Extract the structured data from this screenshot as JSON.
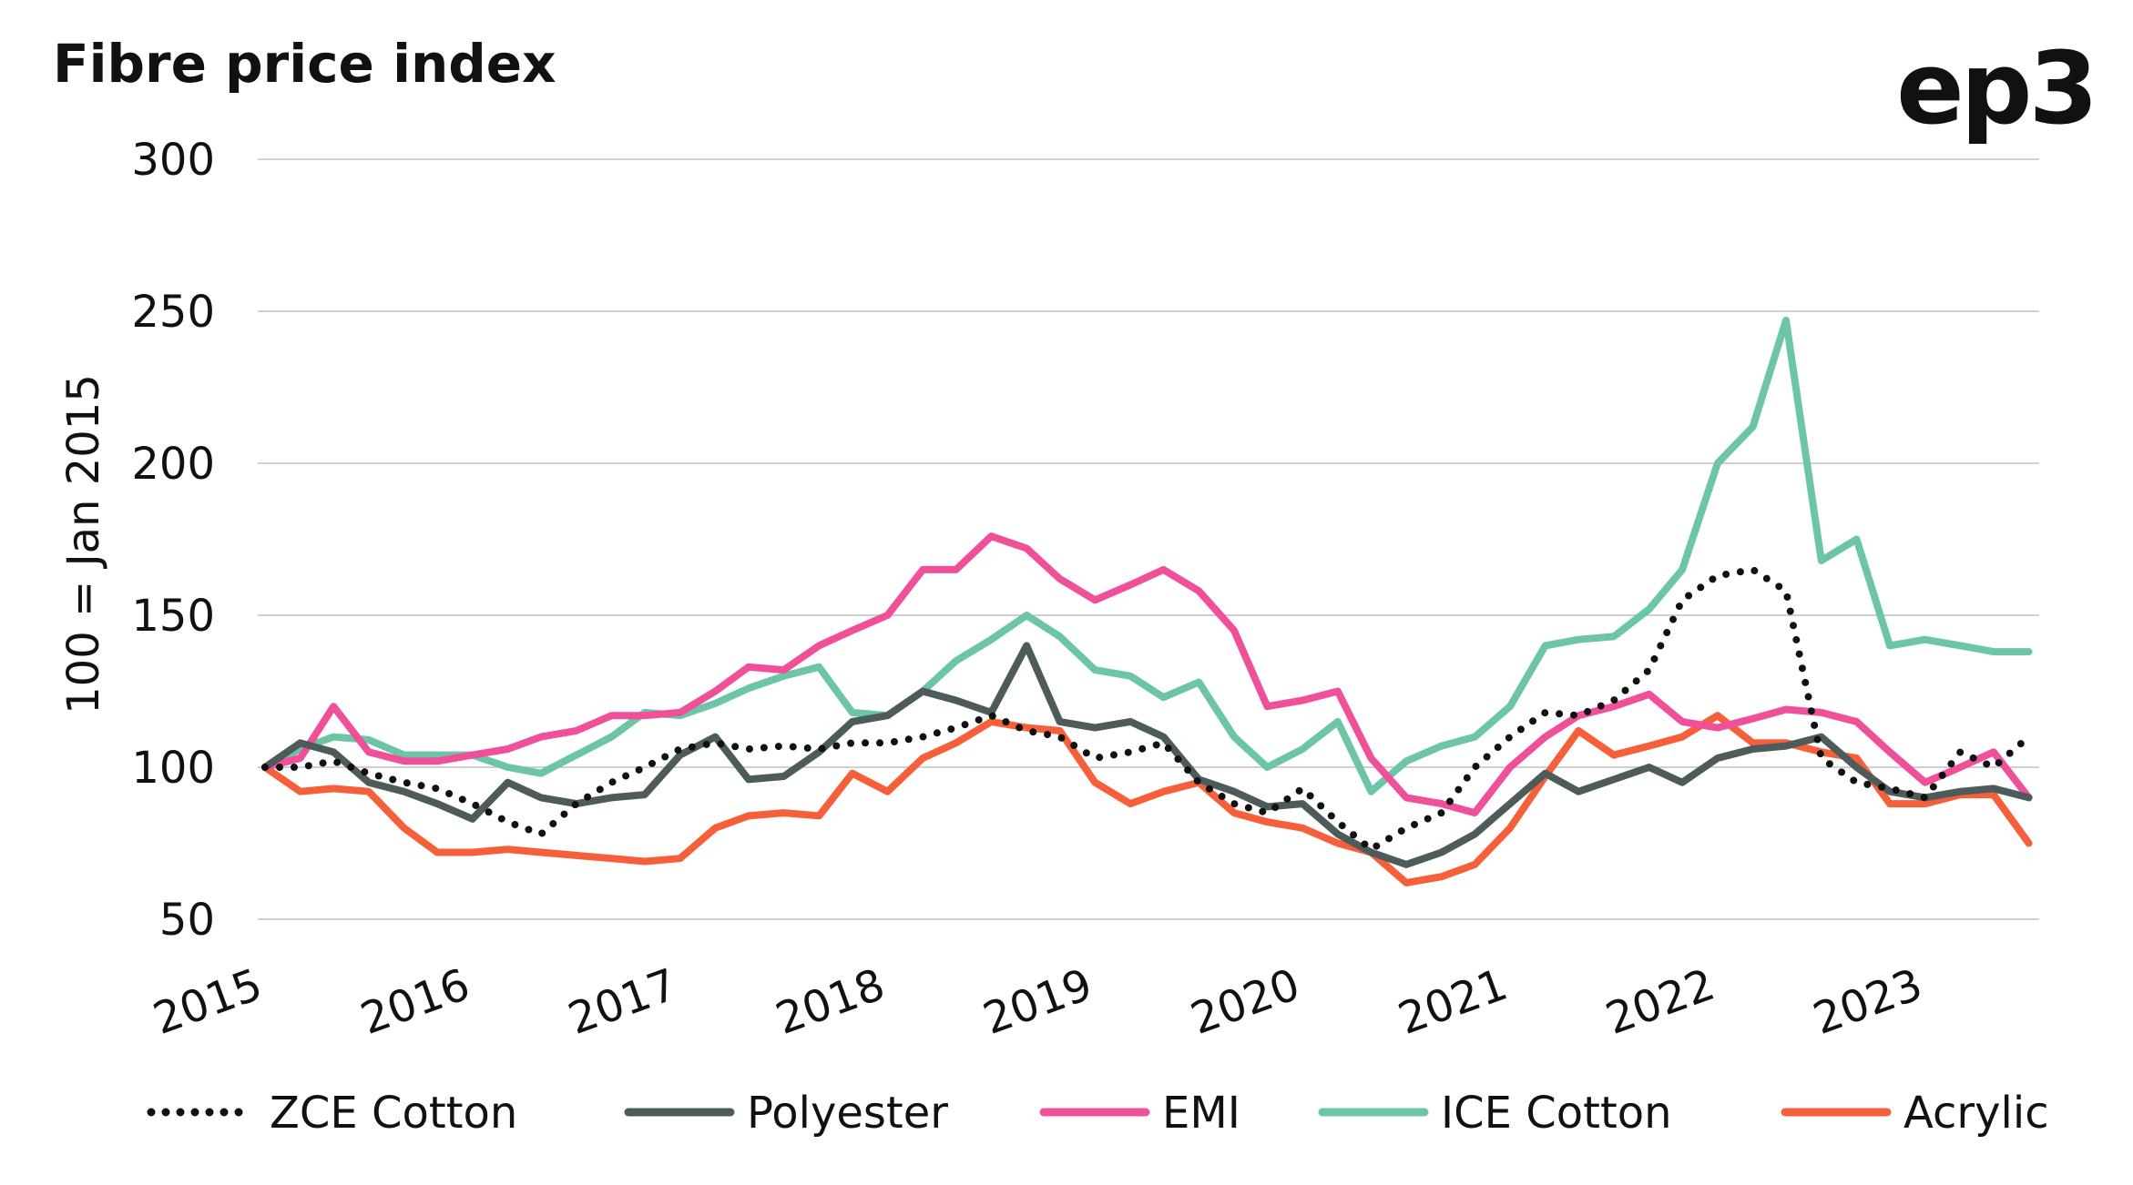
{
  "chart_data": {
    "type": "line",
    "title": "Fibre price index",
    "logo": "ep3",
    "y_label": "100 = Jan 2015",
    "x": [
      2015,
      2015.17,
      2015.33,
      2015.5,
      2015.67,
      2015.83,
      2016,
      2016.17,
      2016.33,
      2016.5,
      2016.67,
      2016.83,
      2017,
      2017.17,
      2017.33,
      2017.5,
      2017.67,
      2017.83,
      2018,
      2018.17,
      2018.33,
      2018.5,
      2018.67,
      2018.83,
      2019,
      2019.17,
      2019.33,
      2019.5,
      2019.67,
      2019.83,
      2020,
      2020.17,
      2020.33,
      2020.5,
      2020.67,
      2020.83,
      2021,
      2021.17,
      2021.33,
      2021.5,
      2021.67,
      2021.83,
      2022,
      2022.17,
      2022.33,
      2022.5,
      2022.67,
      2022.83,
      2023,
      2023.17,
      2023.33,
      2023.5
    ],
    "xlim": [
      2015,
      2023.55
    ],
    "xticks": [
      2015,
      2016,
      2017,
      2018,
      2019,
      2020,
      2021,
      2022,
      2023
    ],
    "ylim": [
      50,
      300
    ],
    "yticks": [
      50,
      100,
      150,
      200,
      250,
      300
    ],
    "grid": true,
    "series": [
      {
        "name": "ZCE Cotton",
        "color": "#111111",
        "dotted": true,
        "values": [
          100,
          100,
          102,
          98,
          95,
          93,
          88,
          82,
          78,
          88,
          95,
          100,
          106,
          108,
          106,
          107,
          106,
          108,
          108,
          110,
          113,
          117,
          112,
          110,
          103,
          105,
          108,
          95,
          88,
          85,
          93,
          82,
          73,
          80,
          85,
          100,
          110,
          118,
          117,
          122,
          132,
          155,
          163,
          165,
          158,
          103,
          95,
          93,
          90,
          105,
          100,
          110
        ]
      },
      {
        "name": "Polyester",
        "color": "#4d5b5b",
        "values": [
          100,
          108,
          105,
          95,
          92,
          88,
          83,
          95,
          90,
          88,
          90,
          91,
          104,
          110,
          96,
          97,
          105,
          115,
          117,
          125,
          122,
          118,
          140,
          115,
          113,
          115,
          110,
          96,
          92,
          87,
          88,
          78,
          72,
          68,
          72,
          78,
          88,
          98,
          92,
          96,
          100,
          95,
          103,
          106,
          107,
          110,
          100,
          92,
          90,
          92,
          93,
          90
        ]
      },
      {
        "name": "EMI",
        "color": "#f0509a",
        "values": [
          100,
          103,
          120,
          105,
          102,
          102,
          104,
          106,
          110,
          112,
          117,
          117,
          118,
          125,
          133,
          132,
          140,
          145,
          150,
          165,
          165,
          176,
          172,
          162,
          155,
          160,
          165,
          158,
          145,
          120,
          122,
          125,
          103,
          90,
          88,
          85,
          100,
          110,
          117,
          120,
          124,
          115,
          113,
          116,
          119,
          118,
          115,
          105,
          95,
          100,
          105,
          90
        ]
      },
      {
        "name": "ICE Cotton",
        "color": "#6cc5a5",
        "values": [
          100,
          106,
          110,
          109,
          104,
          104,
          104,
          100,
          98,
          104,
          110,
          118,
          117,
          121,
          126,
          130,
          133,
          118,
          117,
          125,
          135,
          142,
          150,
          143,
          132,
          130,
          123,
          128,
          110,
          100,
          106,
          115,
          92,
          102,
          107,
          110,
          120,
          140,
          142,
          143,
          152,
          165,
          200,
          212,
          247,
          168,
          175,
          140,
          142,
          140,
          138,
          138
        ]
      },
      {
        "name": "Acrylic",
        "color": "#f5603a",
        "values": [
          100,
          92,
          93,
          92,
          80,
          72,
          72,
          73,
          72,
          71,
          70,
          69,
          70,
          80,
          84,
          85,
          84,
          98,
          92,
          103,
          108,
          115,
          113,
          112,
          95,
          88,
          92,
          95,
          85,
          82,
          80,
          75,
          72,
          62,
          64,
          68,
          80,
          97,
          112,
          104,
          107,
          110,
          117,
          108,
          108,
          105,
          103,
          88,
          88,
          91,
          91,
          75
        ]
      }
    ]
  }
}
